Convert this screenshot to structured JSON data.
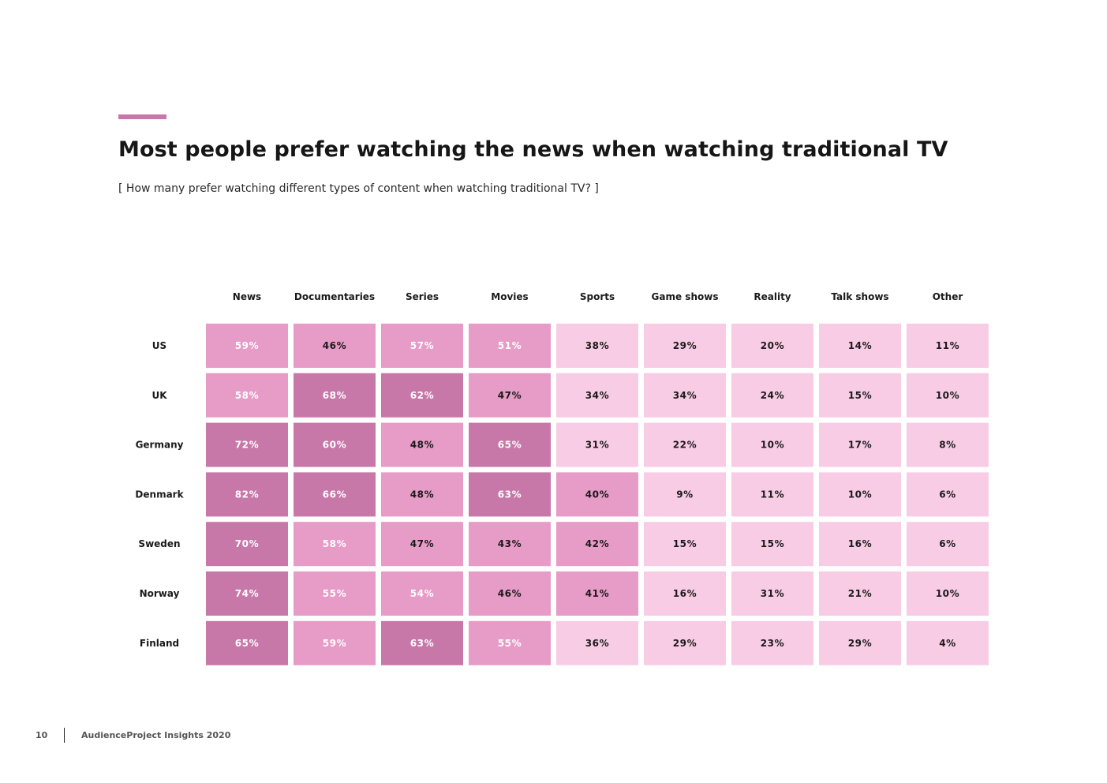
{
  "header": {
    "title": "Most people prefer watching the news when watching traditional TV",
    "subtitle": "[ How many prefer watching different types of content when watching traditional TV? ]"
  },
  "colors": {
    "accent": "#c877a9",
    "high": "#c877a9",
    "mid": "#e79bc7",
    "low": "#f8cce5",
    "text_dark": "#1a1a1a",
    "text_light": "#ffffff"
  },
  "chart_data": {
    "type": "heatmap",
    "title": "Most people prefer watching the news when watching traditional TV",
    "subtitle": "[ How many prefer watching different types of content when watching traditional TV? ]",
    "columns": [
      "News",
      "Documentaries",
      "Series",
      "Movies",
      "Sports",
      "Game shows",
      "Reality",
      "Talk shows",
      "Other"
    ],
    "rows": [
      "US",
      "UK",
      "Germany",
      "Denmark",
      "Sweden",
      "Norway",
      "Finland"
    ],
    "values": [
      [
        59,
        46,
        57,
        51,
        38,
        29,
        20,
        14,
        11
      ],
      [
        58,
        68,
        62,
        47,
        34,
        34,
        24,
        15,
        10
      ],
      [
        72,
        60,
        48,
        65,
        31,
        22,
        10,
        17,
        8
      ],
      [
        82,
        66,
        48,
        63,
        40,
        9,
        11,
        10,
        6
      ],
      [
        70,
        58,
        47,
        43,
        42,
        15,
        15,
        16,
        6
      ],
      [
        74,
        55,
        54,
        46,
        41,
        16,
        31,
        21,
        10
      ],
      [
        65,
        59,
        63,
        55,
        36,
        29,
        23,
        29,
        4
      ]
    ],
    "unit": "%"
  },
  "footer": {
    "page_number": "10",
    "brand": "AudienceProject Insights 2020"
  }
}
